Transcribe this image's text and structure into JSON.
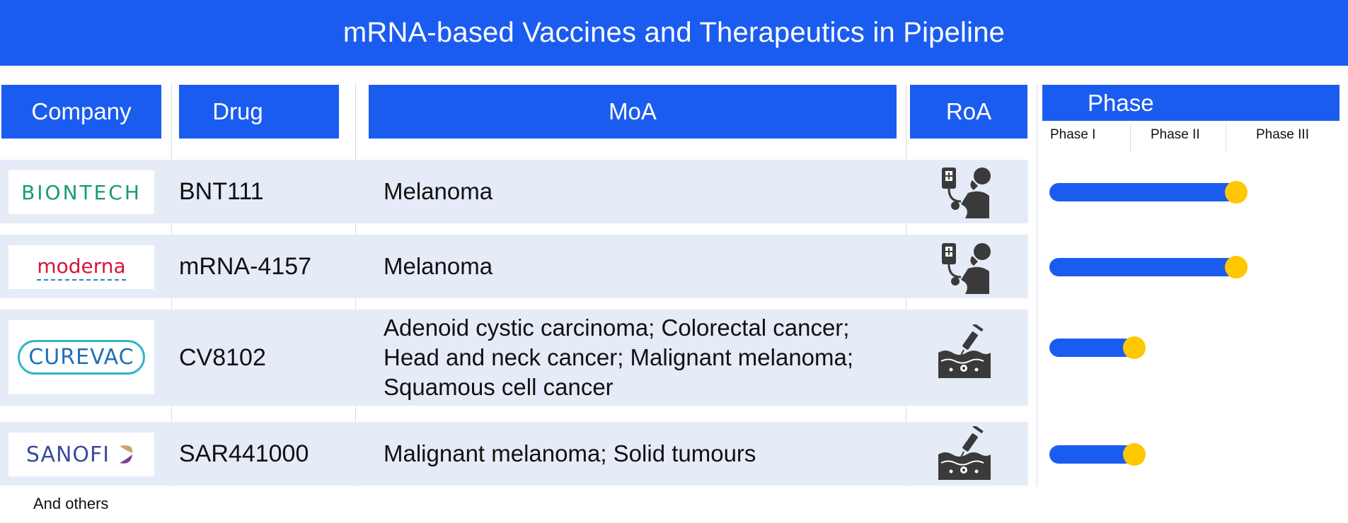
{
  "title": "mRNA-based Vaccines and Therapeutics in Pipeline",
  "columns": {
    "company": "Company",
    "drug": "Drug",
    "moa": "MoA",
    "roa": "RoA",
    "phase": "Phase"
  },
  "phases": [
    "Phase I",
    "Phase II",
    "Phase III"
  ],
  "colors": {
    "accent": "#1b5cf0",
    "row_bg": "#e5ebf7",
    "marker": "#ffc700"
  },
  "rows": [
    {
      "company": "BIONTECH",
      "drug": "BNT111",
      "moa": "Melanoma",
      "roa_icon": "iv-infusion-icon",
      "phase_progress": 0.59
    },
    {
      "company": "moderna",
      "drug": "mRNA-4157",
      "moa": "Melanoma",
      "roa_icon": "iv-infusion-icon",
      "phase_progress": 0.59
    },
    {
      "company": "CUREVAC",
      "drug": "CV8102",
      "moa": "Adenoid cystic carcinoma; Colorectal cancer; Head and neck cancer; Malignant melanoma; Squamous cell cancer",
      "roa_icon": "intratumoral-injection-icon",
      "phase_progress": 0.3
    },
    {
      "company": "SANOFI",
      "drug": "SAR441000",
      "moa": "Malignant melanoma; Solid tumours",
      "roa_icon": "intratumoral-injection-icon",
      "phase_progress": 0.3
    }
  ],
  "footer": "And others"
}
